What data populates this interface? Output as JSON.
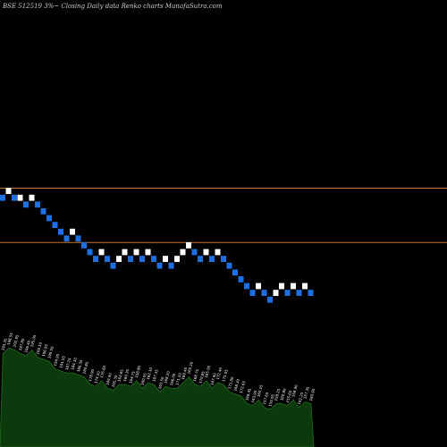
{
  "title": "BSE 512519 3%~  Closing Daily data  Renko  charts MunafaSutra.com",
  "colors": {
    "background": "#000000",
    "up_brick": "#ffffff",
    "down_brick": "#1e6fe0",
    "resistance_line": "#c8742c",
    "volume_fill": "#0d3a0d",
    "volume_stroke": "#1f6b1f",
    "text": "#cccccc"
  },
  "chart_data": {
    "type": "renko",
    "title": "BSE 512519 3%~  Closing Daily data  Renko  charts MunafaSutra.com",
    "bricks": [
      {
        "level": 20,
        "dir": "down"
      },
      {
        "level": 21,
        "dir": "up"
      },
      {
        "level": 20,
        "dir": "down"
      },
      {
        "level": 20,
        "dir": "up"
      },
      {
        "level": 19,
        "dir": "down"
      },
      {
        "level": 20,
        "dir": "up"
      },
      {
        "level": 19,
        "dir": "down"
      },
      {
        "level": 18,
        "dir": "down"
      },
      {
        "level": 17,
        "dir": "down"
      },
      {
        "level": 16,
        "dir": "down"
      },
      {
        "level": 15,
        "dir": "down"
      },
      {
        "level": 14,
        "dir": "down"
      },
      {
        "level": 15,
        "dir": "up"
      },
      {
        "level": 14,
        "dir": "down"
      },
      {
        "level": 13,
        "dir": "down"
      },
      {
        "level": 12,
        "dir": "down"
      },
      {
        "level": 11,
        "dir": "down"
      },
      {
        "level": 12,
        "dir": "up"
      },
      {
        "level": 11,
        "dir": "down"
      },
      {
        "level": 10,
        "dir": "down"
      },
      {
        "level": 11,
        "dir": "up"
      },
      {
        "level": 12,
        "dir": "up"
      },
      {
        "level": 11,
        "dir": "down"
      },
      {
        "level": 12,
        "dir": "up"
      },
      {
        "level": 11,
        "dir": "down"
      },
      {
        "level": 12,
        "dir": "up"
      },
      {
        "level": 11,
        "dir": "down"
      },
      {
        "level": 10,
        "dir": "down"
      },
      {
        "level": 11,
        "dir": "up"
      },
      {
        "level": 10,
        "dir": "down"
      },
      {
        "level": 11,
        "dir": "up"
      },
      {
        "level": 12,
        "dir": "up"
      },
      {
        "level": 13,
        "dir": "up"
      },
      {
        "level": 12,
        "dir": "down"
      },
      {
        "level": 11,
        "dir": "down"
      },
      {
        "level": 12,
        "dir": "up"
      },
      {
        "level": 11,
        "dir": "down"
      },
      {
        "level": 12,
        "dir": "up"
      },
      {
        "level": 11,
        "dir": "down"
      },
      {
        "level": 10,
        "dir": "down"
      },
      {
        "level": 9,
        "dir": "down"
      },
      {
        "level": 8,
        "dir": "down"
      },
      {
        "level": 7,
        "dir": "down"
      },
      {
        "level": 6,
        "dir": "down"
      },
      {
        "level": 7,
        "dir": "up"
      },
      {
        "level": 6,
        "dir": "down"
      },
      {
        "level": 5,
        "dir": "down"
      },
      {
        "level": 6,
        "dir": "up"
      },
      {
        "level": 7,
        "dir": "up"
      },
      {
        "level": 6,
        "dir": "down"
      },
      {
        "level": 7,
        "dir": "up"
      },
      {
        "level": 6,
        "dir": "down"
      },
      {
        "level": 7,
        "dir": "up"
      },
      {
        "level": 6,
        "dir": "down"
      }
    ],
    "horizontal_lines": [
      21,
      13
    ],
    "volume_labels": [
      "193.35",
      "198.55",
      "202.95",
      "197.80",
      "196.40",
      "195.05",
      "199.10",
      "196.95",
      "199.50",
      "194.95",
      "191.55",
      "187.25",
      "184.10",
      "186.35",
      "180.85",
      "178.90",
      "174.10",
      "176.60",
      "169.90",
      "165.30",
      "162.65",
      "160.35",
      "164.75",
      "158.80",
      "160.05",
      "162.10",
      "167.35",
      "163.50",
      "168.20",
      "166.05",
      "171.10",
      "169.45",
      "165.20",
      "168.75",
      "170.85",
      "165.95",
      "167.90",
      "172.40",
      "175.05",
      "171.80",
      "168.30",
      "172.65",
      "166.45",
      "163.90",
      "160.15",
      "157.60",
      "155.05",
      "158.25",
      "160.80",
      "155.60",
      "158.90",
      "161.25",
      "157.35",
      "160.90"
    ]
  }
}
